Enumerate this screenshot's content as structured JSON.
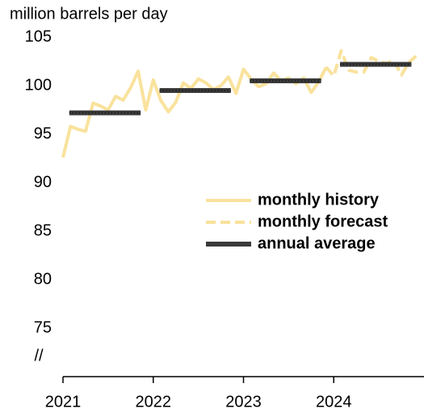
{
  "chart_data": {
    "type": "line",
    "y_axis_label": "million barrels per day",
    "axis_break_label": "//",
    "xlim": [
      2021,
      2025
    ],
    "xticks": [
      2021,
      2022,
      2023,
      2024
    ],
    "ylim": [
      70,
      105
    ],
    "yticks": [
      75,
      80,
      85,
      90,
      95,
      100,
      105
    ],
    "legend": "right",
    "x": [
      2021.0,
      2021.083,
      2021.167,
      2021.25,
      2021.333,
      2021.417,
      2021.5,
      2021.583,
      2021.667,
      2021.75,
      2021.833,
      2021.917,
      2022.0,
      2022.083,
      2022.167,
      2022.25,
      2022.333,
      2022.417,
      2022.5,
      2022.583,
      2022.667,
      2022.75,
      2022.833,
      2022.917,
      2023.0,
      2023.083,
      2023.167,
      2023.25,
      2023.333,
      2023.417,
      2023.5,
      2023.583,
      2023.667,
      2023.75,
      2023.833,
      2023.917,
      2024.0,
      2024.083,
      2024.167,
      2024.25,
      2024.333,
      2024.417,
      2024.5,
      2024.583,
      2024.667,
      2024.75,
      2024.833,
      2024.917
    ],
    "series": [
      {
        "name": "monthly history",
        "color": "#f9e29c",
        "dash": false,
        "values": [
          92.6,
          95.8,
          95.5,
          95.3,
          98.2,
          97.9,
          97.5,
          98.9,
          98.5,
          99.8,
          101.5,
          97.5,
          100.6,
          98.5,
          97.3,
          98.3,
          100.3,
          99.7,
          100.7,
          100.3,
          99.6,
          100.0,
          100.9,
          99.2,
          101.7,
          100.7,
          99.9,
          100.2,
          101.3,
          100.5,
          100.8,
          100.2,
          100.8,
          99.3,
          100.4,
          101.9,
          null,
          null,
          null,
          null,
          null,
          null,
          null,
          null,
          null,
          null,
          null,
          null
        ]
      },
      {
        "name": "monthly forecast",
        "color": "#f9e29c",
        "dash": true,
        "values": [
          null,
          null,
          null,
          null,
          null,
          null,
          null,
          null,
          null,
          null,
          null,
          null,
          null,
          null,
          null,
          null,
          null,
          null,
          null,
          null,
          null,
          null,
          null,
          null,
          null,
          null,
          null,
          null,
          null,
          null,
          null,
          null,
          null,
          null,
          null,
          101.9,
          101.0,
          103.6,
          101.6,
          101.4,
          101.4,
          102.9,
          102.5,
          102.3,
          102.6,
          101.1,
          102.4,
          103.1
        ]
      }
    ],
    "annual_average": {
      "name": "annual average",
      "color": "#3a3a3a",
      "years": [
        2021,
        2022,
        2023,
        2024
      ],
      "values": [
        97.2,
        99.5,
        100.5,
        102.2
      ]
    }
  }
}
